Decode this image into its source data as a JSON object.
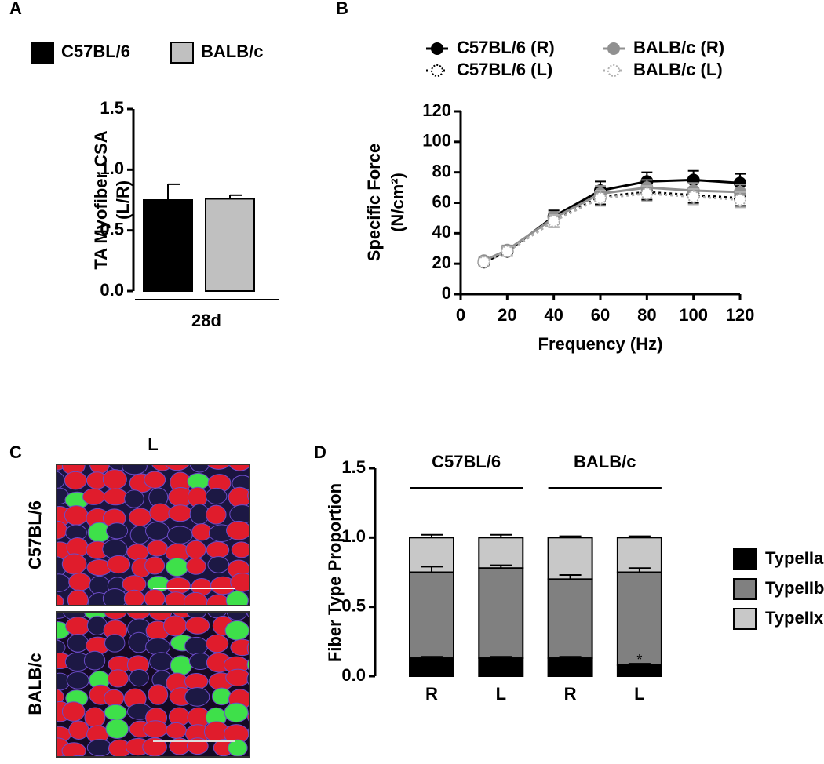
{
  "chart_data": [
    {
      "type": "bar",
      "panel": "A",
      "ylabel": [
        "TA Myofiber CSA",
        "(L/R)"
      ],
      "categories": [
        "28d"
      ],
      "series": [
        {
          "name": "C57BL/6",
          "color": "#000000",
          "values": [
            0.75
          ],
          "errors": [
            0.13
          ]
        },
        {
          "name": "BALB/c",
          "color": "#c0c0c0",
          "values": [
            0.76
          ],
          "errors": [
            0.03
          ]
        }
      ],
      "ylim": [
        0,
        1.5
      ],
      "yticks": [
        {
          "value": 0,
          "label": "0.0"
        },
        0.5,
        {
          "value": 1,
          "label": "1.0"
        },
        1.5
      ]
    },
    {
      "type": "line",
      "panel": "B",
      "ylabel": [
        "Specific Force",
        "(N/cm²)"
      ],
      "xlabel": "Frequency (Hz)",
      "x": [
        10,
        20,
        40,
        60,
        80,
        100,
        120
      ],
      "series": [
        {
          "name": "C57BL/6 (R)",
          "color": "#000000",
          "style": "solid",
          "marker": "filled",
          "values": [
            21,
            28,
            51,
            68,
            74,
            75,
            73
          ],
          "errors": [
            2,
            3,
            4,
            6,
            6,
            6,
            6
          ]
        },
        {
          "name": "C57BL/6 (L)",
          "color": "#000000",
          "style": "dotted",
          "marker": "open",
          "values": [
            21,
            28,
            48,
            64,
            67,
            65,
            63
          ],
          "errors": [
            2,
            3,
            4,
            5,
            5,
            5,
            5
          ]
        },
        {
          "name": "BALB/c (R)",
          "color": "#909090",
          "style": "solid",
          "marker": "filled",
          "values": [
            22,
            29,
            50,
            66,
            70,
            68,
            67
          ],
          "errors": [
            2,
            3,
            4,
            5,
            5,
            5,
            5
          ]
        },
        {
          "name": "BALB/c (L)",
          "color": "#b0b0b0",
          "style": "dotted",
          "marker": "open",
          "values": [
            21,
            28,
            48,
            63,
            66,
            64,
            62
          ],
          "errors": [
            2,
            3,
            4,
            5,
            5,
            5,
            5
          ]
        }
      ],
      "xlim": [
        0,
        120
      ],
      "xticks": [
        0,
        20,
        40,
        60,
        80,
        100,
        120
      ],
      "ylim": [
        0,
        120
      ],
      "yticks": [
        0,
        20,
        40,
        60,
        80,
        100,
        120
      ]
    },
    {
      "type": "stacked_bar",
      "panel": "D",
      "ylabel": "Fiber Type Proportion",
      "groups": [
        "C57BL/6",
        "BALB/c"
      ],
      "categories": [
        "R",
        "L",
        "R",
        "L"
      ],
      "series": [
        {
          "name": "TypeIIa",
          "color": "#000000",
          "values": [
            0.13,
            0.13,
            0.13,
            0.08
          ],
          "errors": [
            0.01,
            0.01,
            0.01,
            0.01
          ]
        },
        {
          "name": "TypeIIb",
          "color": "#808080",
          "values": [
            0.62,
            0.65,
            0.57,
            0.67
          ],
          "errors": [
            0.04,
            0.02,
            0.03,
            0.03
          ]
        },
        {
          "name": "TypeIIx",
          "color": "#c8c8c8",
          "values": [
            0.25,
            0.22,
            0.3,
            0.25
          ],
          "errors": [
            0.02,
            0.02,
            0.01,
            0.01
          ]
        }
      ],
      "annotation": "*",
      "ylim": [
        0,
        1.5
      ],
      "yticks": [
        {
          "value": 0,
          "label": "0.0"
        },
        0.5,
        {
          "value": 1,
          "label": "1.0"
        },
        1.5
      ]
    }
  ],
  "micrograph_panel": {
    "label": "C",
    "column_label": "L",
    "row_labels": [
      "C57BL/6",
      "BALB/c"
    ]
  }
}
